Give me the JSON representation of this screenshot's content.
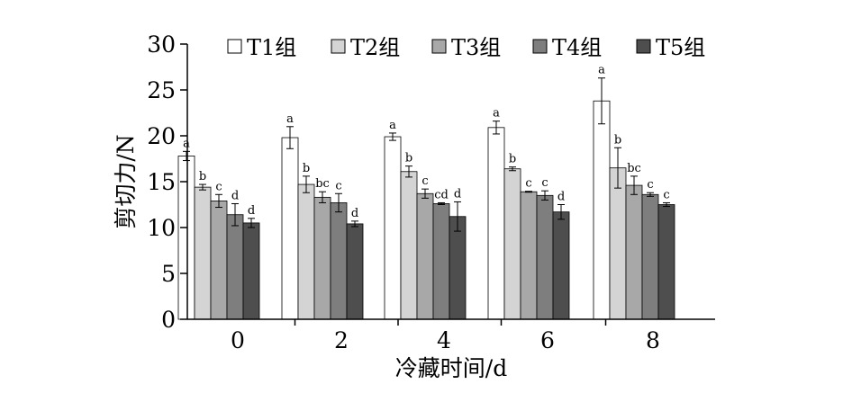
{
  "chart_data": {
    "type": "bar",
    "xlabel": "冷藏时间/d",
    "ylabel": "剪切力/N",
    "ylim": [
      0,
      30
    ],
    "yticks": [
      0,
      5,
      10,
      15,
      20,
      25,
      30
    ],
    "categories": [
      "0",
      "2",
      "4",
      "6",
      "8"
    ],
    "legend_position": "top",
    "series": [
      {
        "name": "T1组",
        "color": "#ffffff",
        "values": [
          17.8,
          19.8,
          19.9,
          20.9,
          23.8
        ],
        "errors": [
          0.5,
          1.2,
          0.4,
          0.7,
          2.5
        ],
        "labels": [
          "a",
          "a",
          "a",
          "a",
          "a"
        ]
      },
      {
        "name": "T2组",
        "color": "#d4d4d4",
        "values": [
          14.4,
          14.7,
          16.1,
          16.4,
          16.5
        ],
        "errors": [
          0.3,
          0.9,
          0.6,
          0.2,
          2.2
        ],
        "labels": [
          "b",
          "b",
          "b",
          "b",
          "b"
        ]
      },
      {
        "name": "T3组",
        "color": "#a8a8a8",
        "values": [
          12.9,
          13.3,
          13.7,
          13.9,
          14.6
        ],
        "errors": [
          0.7,
          0.6,
          0.5,
          0.05,
          1.0
        ],
        "labels": [
          "c",
          "bc",
          "c",
          "c",
          "bc"
        ]
      },
      {
        "name": "T4组",
        "color": "#7e7e7e",
        "values": [
          11.4,
          12.7,
          12.6,
          13.5,
          13.6
        ],
        "errors": [
          1.2,
          1.0,
          0.1,
          0.5,
          0.2
        ],
        "labels": [
          "d",
          "c",
          "cd",
          "c",
          "c"
        ]
      },
      {
        "name": "T5组",
        "color": "#4e4e4e",
        "values": [
          10.5,
          10.4,
          11.2,
          11.7,
          12.5
        ],
        "errors": [
          0.5,
          0.3,
          1.6,
          0.8,
          0.2
        ],
        "labels": [
          "d",
          "d",
          "d",
          "d",
          "c"
        ]
      }
    ]
  }
}
